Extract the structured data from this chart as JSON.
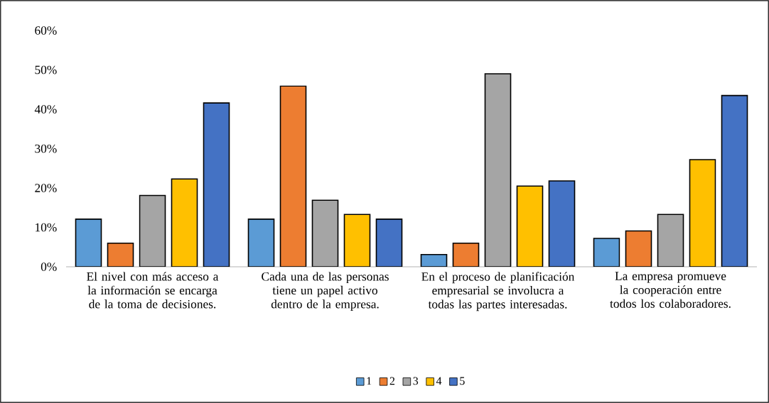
{
  "chart_data": {
    "type": "bar",
    "categories": [
      "El nivel con más acceso a la información se encarga de la toma de decisiones.",
      "Cada una de las personas tiene un papel activo dentro de la empresa.",
      "En el proceso de planificación empresarial se involucra a todas las partes interesadas.",
      "La empresa promueve la cooperación entre todos los colaboradores."
    ],
    "series": [
      {
        "name": "1",
        "color": "#5b9bd5",
        "values": [
          12.1,
          12.1,
          3.1,
          7.2
        ]
      },
      {
        "name": "2",
        "color": "#ed7d31",
        "values": [
          6.0,
          45.9,
          6.0,
          9.1
        ]
      },
      {
        "name": "3",
        "color": "#a5a5a5",
        "values": [
          18.1,
          16.9,
          49.0,
          13.3
        ]
      },
      {
        "name": "4",
        "color": "#ffc000",
        "values": [
          22.3,
          13.3,
          20.5,
          27.2
        ]
      },
      {
        "name": "5",
        "color": "#4472c4",
        "values": [
          41.6,
          12.1,
          21.8,
          43.5
        ]
      }
    ],
    "ylim": [
      0,
      60
    ],
    "yticks": [
      {
        "value": 0,
        "label": "0%"
      },
      {
        "value": 10,
        "label": "10%"
      },
      {
        "value": 20,
        "label": "20%"
      },
      {
        "value": 30,
        "label": "30%"
      },
      {
        "value": 40,
        "label": "40%"
      },
      {
        "value": 50,
        "label": "50%"
      },
      {
        "value": 60,
        "label": "60%"
      }
    ],
    "grid": false,
    "legend": "bottom"
  }
}
